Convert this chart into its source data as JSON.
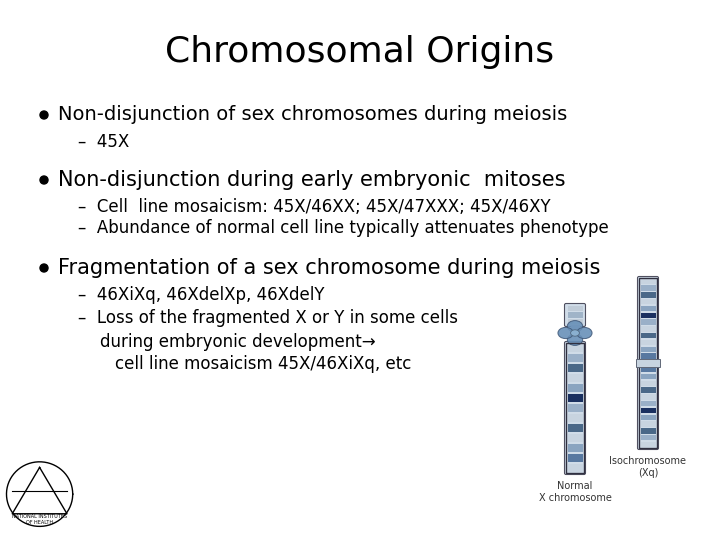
{
  "title": "Chromosomal Origins",
  "title_fontsize": 26,
  "background_color": "#ffffff",
  "text_color": "#000000",
  "bullet1_text": "Non-disjunction of sex chromosomes during meiosis",
  "bullet1_fontsize": 14,
  "sub1_text": "–  45X",
  "sub1_fontsize": 12,
  "bullet2_text": "Non-disjunction during early embryonic  mitoses",
  "bullet2_fontsize": 15,
  "sub2a_text": "–  Cell  line mosaicism: 45X/46XX; 45X/47XXX; 45X/46XY",
  "sub2a_fontsize": 12,
  "sub2b_text": "–  Abundance of normal cell line typically attenuates phenotype",
  "sub2b_fontsize": 12,
  "bullet3_text": "Fragmentation of a sex chromosome during meiosis",
  "bullet3_fontsize": 15,
  "sub3a_text": "–  46XiXq, 46XdelXp, 46XdelY",
  "sub3a_fontsize": 12,
  "sub3b_text": "–  Loss of the fragmented X or Y in some cells",
  "sub3b_fontsize": 12,
  "sub3c_text": "during embryonic development→",
  "sub3c_fontsize": 12,
  "sub3d_text": "cell line mosaicism 45X/46XiXq, etc",
  "sub3d_fontsize": 12,
  "label1": "Normal\nX chromosome",
  "label2": "Isochromosome\n(Xq)",
  "chr_bands_normal": [
    "#c8d4e0",
    "#9ab0c8",
    "#4a6888",
    "#c8d4e0",
    "#8aa4c0",
    "#1a3060",
    "#9ab0c8",
    "#c8d4e0",
    "#4a6888",
    "#c8d4e0",
    "#8aa4c0",
    "#5878a0",
    "#c8d4e0"
  ],
  "chr_bands_iso": [
    "#c8d4e0",
    "#9ab0c8",
    "#4a6888",
    "#c8d4e0",
    "#8aa4c0",
    "#1a3060",
    "#9ab0c8",
    "#c8d4e0",
    "#4a6888",
    "#c8d4e0",
    "#8aa4c0",
    "#5878a0",
    "#c8d4e0",
    "#5878a0",
    "#8aa4c0",
    "#c8d4e0",
    "#4a6888",
    "#c8d4e0",
    "#9ab0c8",
    "#1a3060",
    "#8aa4c0",
    "#c8d4e0",
    "#4a6888",
    "#9ab0c8",
    "#c8d4e0"
  ]
}
